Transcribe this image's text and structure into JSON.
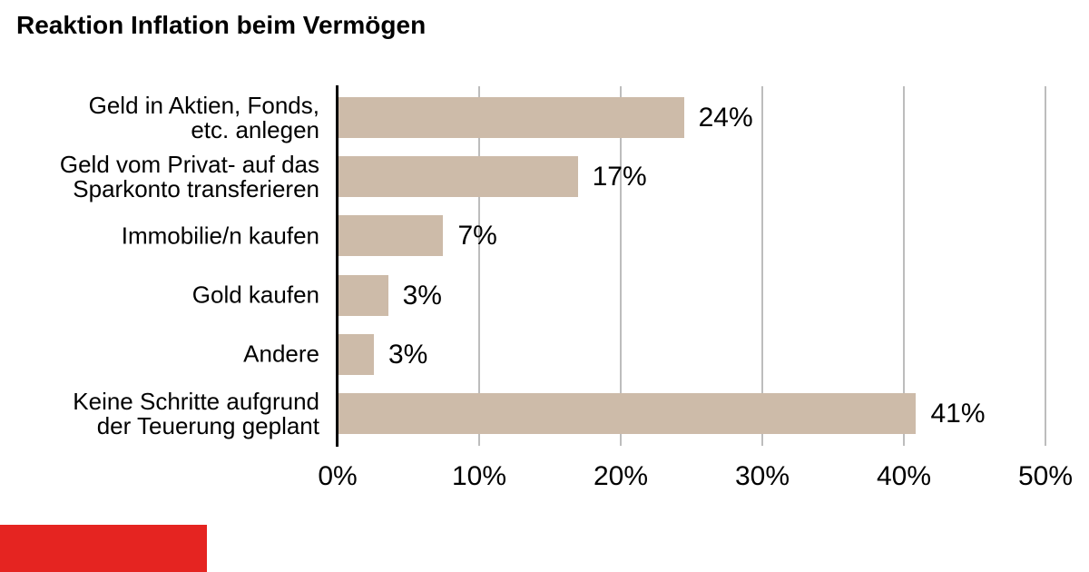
{
  "title": "Reaktion Inflation beim Vermögen",
  "chart_data": {
    "type": "bar",
    "orientation": "horizontal",
    "title": "Reaktion Inflation beim Vermögen",
    "xlabel": "",
    "ylabel": "",
    "xlim": [
      0,
      50
    ],
    "grid": "vertical-gridlines-on",
    "legend": "none",
    "categories": [
      "Geld in Aktien, Fonds, etc. anlegen",
      "Geld vom Privat- auf das Sparkonto transferieren",
      "Immobilie/n kaufen",
      "Gold kaufen",
      "Andere",
      "Keine Schritte aufgrund der Teuerung geplant"
    ],
    "values": [
      24,
      17,
      7,
      3,
      3,
      41
    ],
    "value_labels": [
      "24%",
      "17%",
      "7%",
      "3%",
      "3%",
      "41%"
    ],
    "label_lines": [
      [
        "Geld in Aktien, Fonds,",
        "etc. anlegen"
      ],
      [
        "Geld vom Privat- auf das",
        "Sparkonto transferieren"
      ],
      [
        "Immobilie/n kaufen"
      ],
      [
        "Gold kaufen"
      ],
      [
        "Andere"
      ],
      [
        "Keine Schritte aufgrund",
        "der Teuerung geplant"
      ]
    ],
    "bar_length_pct": [
      24.4,
      16.9,
      7.4,
      3.5,
      2.5,
      40.8
    ],
    "x_ticks": [
      "0%",
      "10%",
      "20%",
      "30%",
      "40%",
      "50%"
    ],
    "colors": {
      "bar": "#cdbba9",
      "gridline": "#bdbdbd",
      "axis": "#000000",
      "text": "#000000"
    }
  },
  "branding": {
    "logo_block_color": "#e52421"
  }
}
